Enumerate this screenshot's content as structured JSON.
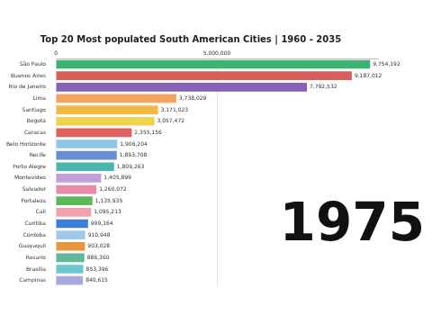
{
  "chart_data": {
    "type": "bar",
    "orientation": "horizontal",
    "title": "Top 20 Most populated South American Cities | 1960 - 2035",
    "annotation": "1975",
    "categories": [
      "São Paulo",
      "Buenos Aires",
      "Rio de Janeiro",
      "Lima",
      "Santiago",
      "Bogotá",
      "Caracas",
      "Belo Horizonte",
      "Recife",
      "Porto Alegre",
      "Montevideo",
      "Salvador",
      "Fortaleza",
      "Cali",
      "Curitiba",
      "Córdoba",
      "Guayaquil",
      "Rosario",
      "Brasília",
      "Campinas"
    ],
    "values": [
      9754192,
      9187012,
      7792532,
      3738029,
      3171023,
      3057472,
      2355156,
      1906204,
      1893708,
      1809263,
      1405899,
      1260072,
      1135935,
      1095213,
      999164,
      910948,
      903028,
      886360,
      853396,
      840615
    ],
    "value_labels": [
      "9,754,192",
      "9,187,012",
      "7,792,532",
      "3,738,029",
      "3,171,023",
      "3,057,472",
      "2,355,156",
      "1,906,204",
      "1,893,708",
      "1,809,263",
      "1,405,899",
      "1,260,072",
      "1,135,935",
      "1,095,213",
      "999,164",
      "910,948",
      "903,028",
      "886,360",
      "853,396",
      "840,615"
    ],
    "colors": [
      "#3cb371",
      "#d9605a",
      "#8a5fb8",
      "#f4a460",
      "#f5b942",
      "#efd34a",
      "#e06060",
      "#8ec6e6",
      "#6a8fd6",
      "#4db6ac",
      "#c0a0d8",
      "#e88aa8",
      "#5cb85c",
      "#f2a0b0",
      "#3b7dd8",
      "#a0c8e8",
      "#e8963a",
      "#5fb89a",
      "#6cc7d0",
      "#a8a8e0"
    ],
    "xlim": [
      0,
      10000000
    ],
    "xticks": [
      0,
      {
        "value": 5000000,
        "label": "5,000,000"
      }
    ],
    "grid": true,
    "data_labels": true
  }
}
